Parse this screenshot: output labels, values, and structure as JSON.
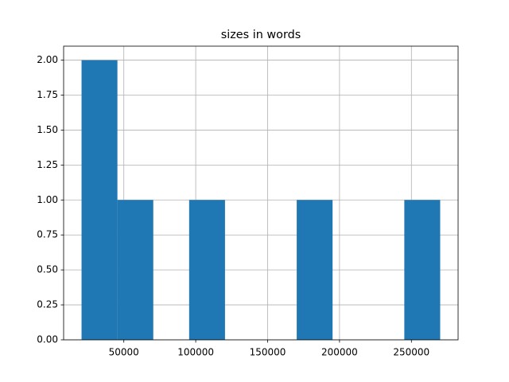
{
  "chart_data": {
    "type": "histogram",
    "title": "sizes in words",
    "bins": [
      20600,
      45540,
      70480,
      95420,
      120360,
      145300,
      170240,
      195180,
      220120,
      245060,
      270000
    ],
    "counts": [
      2,
      1,
      0,
      1,
      0,
      0,
      1,
      0,
      0,
      1
    ],
    "color": "#1f77b4",
    "xlim": [
      8130,
      282470
    ],
    "xticks": [
      50000,
      100000,
      150000,
      200000,
      250000
    ],
    "ylim": [
      0,
      2.1
    ],
    "yticks": [
      {
        "value": 0,
        "label": "0.00"
      },
      {
        "value": 0.25,
        "label": "0.25"
      },
      {
        "value": 0.5,
        "label": "0.50"
      },
      {
        "value": 0.75,
        "label": "0.75"
      },
      {
        "value": 1,
        "label": "1.00"
      },
      {
        "value": 1.25,
        "label": "1.25"
      },
      {
        "value": 1.5,
        "label": "1.50"
      },
      {
        "value": 1.75,
        "label": "1.75"
      },
      {
        "value": 2,
        "label": "2.00"
      }
    ],
    "grid": true
  }
}
